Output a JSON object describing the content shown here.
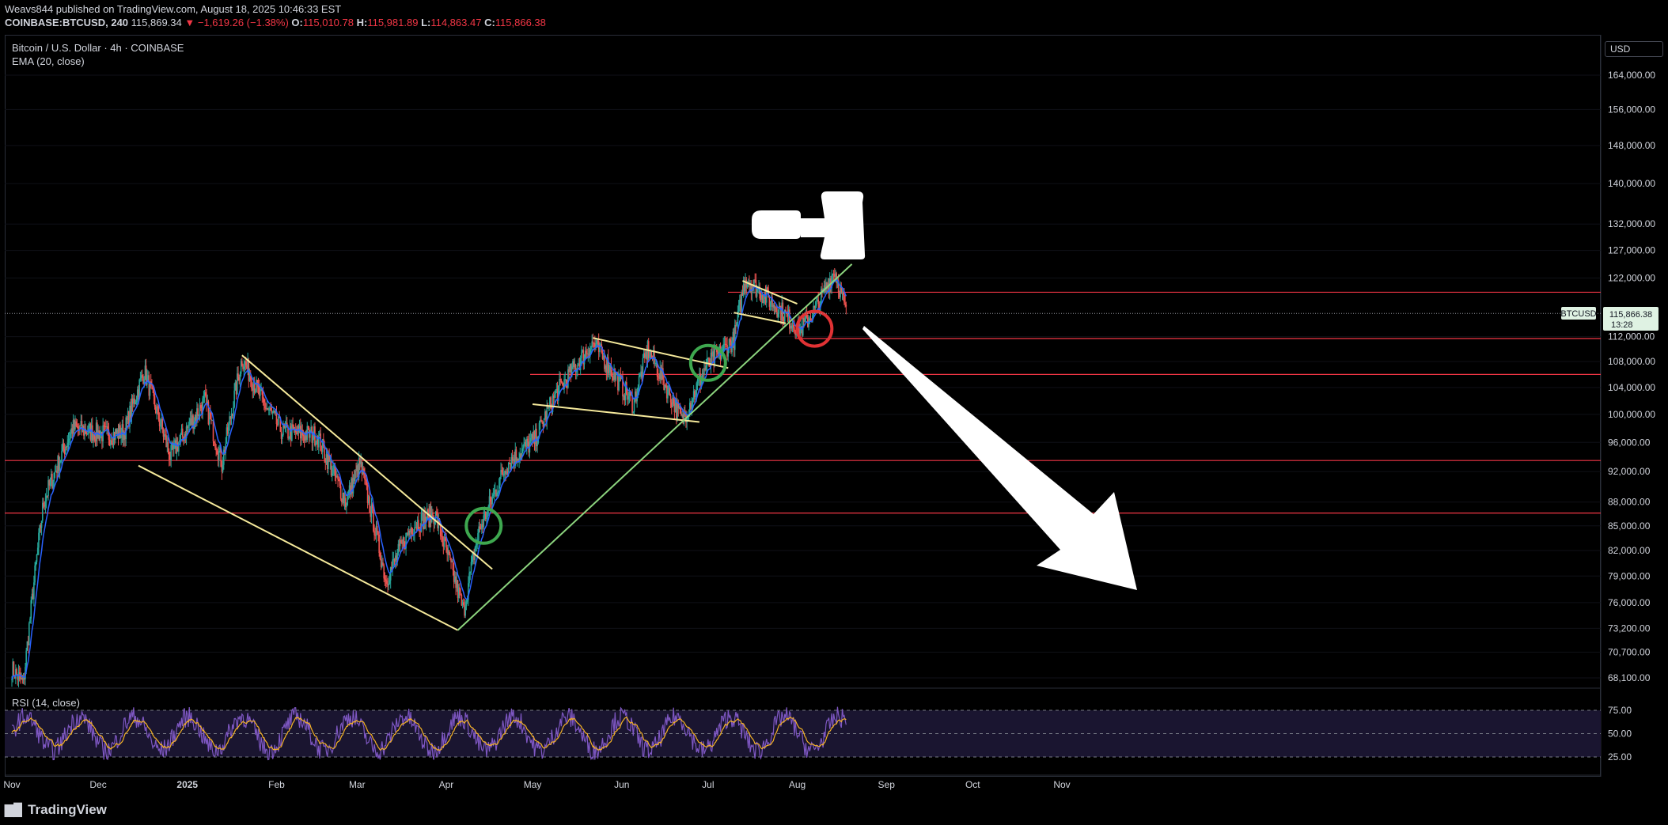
{
  "header": {
    "publisher_line": "Weavs844 published on TradingView.com, August 18, 2025 10:46:33 EST",
    "symbol": "COINBASE:BTCUSD, 240",
    "last": "115,869.34",
    "change": "▼ −1,619.26 (−1.38%)",
    "o_label": "O:",
    "o_value": "115,010.78",
    "h_label": "H:",
    "h_value": "115,981.89",
    "l_label": "L:",
    "l_value": "114,863.47",
    "c_label": "C:",
    "c_value": "115,866.38"
  },
  "legend": {
    "title": "Bitcoin / U.S. Dollar · 4h · COINBASE",
    "ema": "EMA (20, close)",
    "rsi": "RSI (14, close)"
  },
  "currency": "USD",
  "price_tag": {
    "symbol": "BTCUSD",
    "value": "115,866.38",
    "countdown": "13:28"
  },
  "footer": {
    "brand": "TradingView",
    "logo_icon": "tradingview-logo-icon"
  },
  "colors": {
    "background": "#000000",
    "candle_up": "#26a69a",
    "candle_down": "#ef5350",
    "ema": "#2962ff",
    "trendline_yellow": "#f5e99b",
    "trendline_green": "#8cd47e",
    "support_red": "#f23645",
    "rsi_line": "#7e57c2",
    "rsi_ma": "#f5b324"
  },
  "chart_data": {
    "type": "candlestick",
    "scale": "log",
    "timeframe": "4h",
    "x_ticks": [
      "Nov",
      "Dec",
      "2025",
      "Feb",
      "Mar",
      "Apr",
      "May",
      "Jun",
      "Jul",
      "Aug",
      "Sep",
      "Oct",
      "Nov"
    ],
    "y_ticks": [
      "164,000.00",
      "156,000.00",
      "148,000.00",
      "140,000.00",
      "132,000.00",
      "127,000.00",
      "122,000.00",
      "112,000.00",
      "108,000.00",
      "104,000.00",
      "100,000.00",
      "96,000.00",
      "92,000.00",
      "88,000.00",
      "85,000.00",
      "82,000.00",
      "79,000.00",
      "76,000.00",
      "73,200.00",
      "70,700.00",
      "68,100.00"
    ],
    "rsi_ticks": [
      "75.00",
      "50.00",
      "25.00"
    ],
    "close_anchors": [
      [
        "2024-11-01",
        69000
      ],
      [
        "2024-11-05",
        67500
      ],
      [
        "2024-11-12",
        88000
      ],
      [
        "2024-11-22",
        98000
      ],
      [
        "2024-12-05",
        97000
      ],
      [
        "2024-12-10",
        97500
      ],
      [
        "2024-12-17",
        106500
      ],
      [
        "2024-12-26",
        94000
      ],
      [
        "2025-01-07",
        102000
      ],
      [
        "2025-01-13",
        93000
      ],
      [
        "2025-01-20",
        108500
      ],
      [
        "2025-01-27",
        102000
      ],
      [
        "2025-02-03",
        97500
      ],
      [
        "2025-02-15",
        97000
      ],
      [
        "2025-02-25",
        88000
      ],
      [
        "2025-03-02",
        93000
      ],
      [
        "2025-03-11",
        78500
      ],
      [
        "2025-03-20",
        85000
      ],
      [
        "2025-03-28",
        86500
      ],
      [
        "2025-04-07",
        75000
      ],
      [
        "2025-04-12",
        84000
      ],
      [
        "2025-04-22",
        93000
      ],
      [
        "2025-05-02",
        96500
      ],
      [
        "2025-05-09",
        103000
      ],
      [
        "2025-05-22",
        111000
      ],
      [
        "2025-06-05",
        101500
      ],
      [
        "2025-06-10",
        110000
      ],
      [
        "2025-06-22",
        99000
      ],
      [
        "2025-06-30",
        107000
      ],
      [
        "2025-07-10",
        111500
      ],
      [
        "2025-07-14",
        122000
      ],
      [
        "2025-07-25",
        117000
      ],
      [
        "2025-08-02",
        113000
      ],
      [
        "2025-08-08",
        117000
      ],
      [
        "2025-08-14",
        123500
      ],
      [
        "2025-08-18",
        115866
      ]
    ],
    "horizontal_levels": [
      119500,
      111700,
      106000,
      93500,
      86600
    ],
    "yellow_lines": [
      [
        [
          "2024-12-15",
          92800
        ],
        [
          "2025-04-05",
          73000
        ]
      ],
      [
        [
          "2025-01-20",
          109000
        ],
        [
          "2025-04-17",
          79800
        ]
      ],
      [
        [
          "2025-05-22",
          111800
        ],
        [
          "2025-07-08",
          107000
        ]
      ],
      [
        [
          "2025-05-01",
          101500
        ],
        [
          "2025-06-28",
          98900
        ]
      ],
      [
        [
          "2025-07-13",
          121500
        ],
        [
          "2025-08-01",
          117500
        ]
      ],
      [
        [
          "2025-07-10",
          116000
        ],
        [
          "2025-07-28",
          114200
        ]
      ]
    ],
    "green_line": [
      [
        "2025-04-05",
        73000
      ],
      [
        "2025-08-20",
        124500
      ]
    ],
    "highlight_circles": [
      {
        "date": "2025-04-14",
        "price": 85000,
        "color": "#3ea84f"
      },
      {
        "date": "2025-07-01",
        "price": 107800,
        "color": "#3ea84f"
      },
      {
        "date": "2025-08-07",
        "price": 113300,
        "color": "#e03234"
      }
    ],
    "current_price": 115866.38
  }
}
